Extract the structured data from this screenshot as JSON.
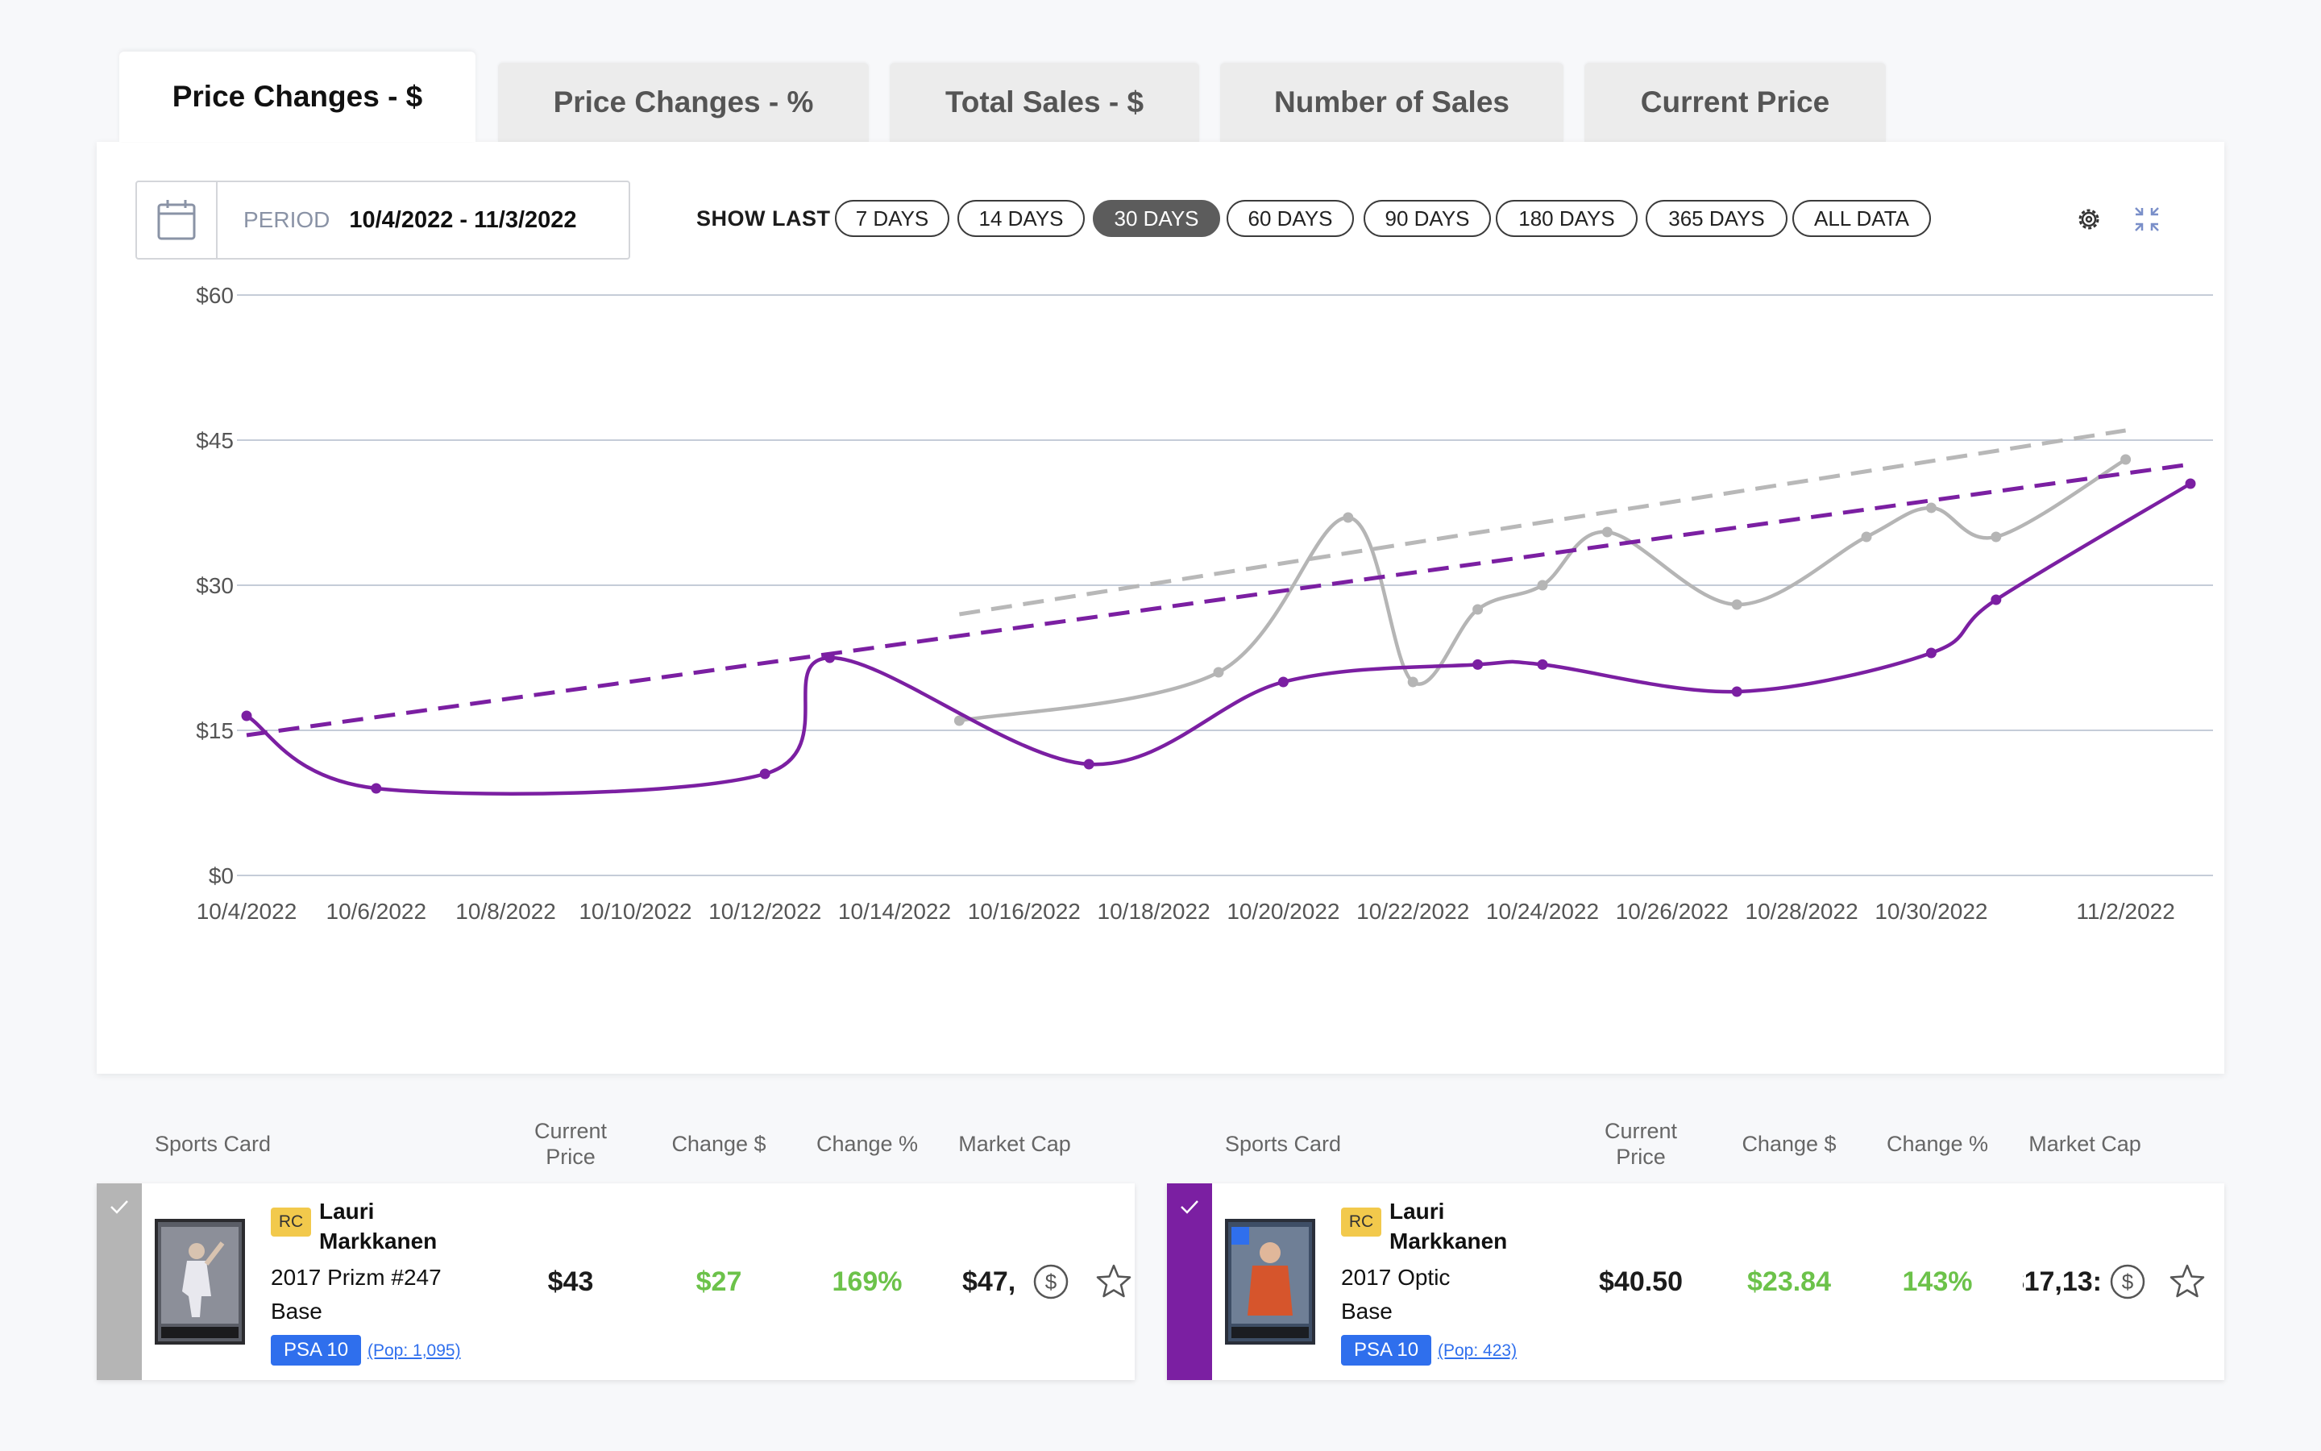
{
  "tabs": [
    {
      "label": "Price Changes - $",
      "active": true
    },
    {
      "label": "Price Changes - %",
      "active": false
    },
    {
      "label": "Total Sales - $",
      "active": false
    },
    {
      "label": "Number of Sales",
      "active": false
    },
    {
      "label": "Current Price",
      "active": false
    }
  ],
  "period": {
    "label": "PERIOD",
    "value": "10/4/2022 - 11/3/2022"
  },
  "show_last": {
    "label": "SHOW LAST",
    "options": [
      "7 DAYS",
      "14 DAYS",
      "30 DAYS",
      "60 DAYS",
      "90 DAYS",
      "180 DAYS",
      "365 DAYS",
      "ALL DATA"
    ],
    "selected": "30 DAYS"
  },
  "icons": {
    "calendar": "calendar-icon",
    "settings": "gear-icon",
    "collapse": "collapse-icon"
  },
  "chart_data": {
    "type": "line",
    "y_ticks": [
      "$60",
      "$45",
      "$30",
      "$15",
      "$0"
    ],
    "x_ticks": [
      "10/4/2022",
      "10/6/2022",
      "10/8/2022",
      "10/10/2022",
      "10/12/2022",
      "10/14/2022",
      "10/16/2022",
      "10/18/2022",
      "10/20/2022",
      "10/22/2022",
      "10/24/2022",
      "10/26/2022",
      "10/28/2022",
      "10/30/2022",
      "11/2/2022"
    ],
    "ylim": [
      0,
      60
    ],
    "xlim": [
      "10/4/2022",
      "11/3/2022"
    ],
    "grid": true,
    "series": [
      {
        "color": "#7b1fa2",
        "points": [
          {
            "x": "10/4/2022",
            "y": 16.5
          },
          {
            "x": "10/6/2022",
            "y": 9
          },
          {
            "x": "10/12/2022",
            "y": 10.5
          },
          {
            "x": "10/13/2022",
            "y": 22.5
          },
          {
            "x": "10/17/2022",
            "y": 11.5
          },
          {
            "x": "10/20/2022",
            "y": 20
          },
          {
            "x": "10/23/2022",
            "y": 21.8
          },
          {
            "x": "10/24/2022",
            "y": 21.8
          },
          {
            "x": "10/27/2022",
            "y": 19
          },
          {
            "x": "10/30/2022",
            "y": 23
          },
          {
            "x": "10/31/2022",
            "y": 28.5
          },
          {
            "x": "11/3/2022",
            "y": 40.5
          }
        ],
        "trend": [
          {
            "x": "10/4/2022",
            "y": 14.5
          },
          {
            "x": "11/3/2022",
            "y": 42.5
          }
        ]
      },
      {
        "color": "#b5b5b5",
        "points": [
          {
            "x": "10/15/2022",
            "y": 16
          },
          {
            "x": "10/19/2022",
            "y": 21
          },
          {
            "x": "10/21/2022",
            "y": 37
          },
          {
            "x": "10/22/2022",
            "y": 20
          },
          {
            "x": "10/23/2022",
            "y": 27.5
          },
          {
            "x": "10/24/2022",
            "y": 30
          },
          {
            "x": "10/25/2022",
            "y": 35.5
          },
          {
            "x": "10/27/2022",
            "y": 28
          },
          {
            "x": "10/29/2022",
            "y": 35
          },
          {
            "x": "10/30/2022",
            "y": 38
          },
          {
            "x": "10/31/2022",
            "y": 35
          },
          {
            "x": "11/2/2022",
            "y": 43
          }
        ],
        "trend": [
          {
            "x": "10/15/2022",
            "y": 27
          },
          {
            "x": "11/2/2022",
            "y": 46
          }
        ]
      }
    ]
  },
  "tables": [
    {
      "headers": {
        "card": "Sports Card",
        "price": "Current\nPrice",
        "change_usd": "Change $",
        "change_pct": "Change %",
        "market_cap": "Market Cap"
      },
      "row": {
        "checked": true,
        "bar_color": "#b5b5b5",
        "badge": "RC",
        "player": "Lauri\nMarkkanen",
        "set": "2017 Prizm #247\nBase",
        "grade": "PSA 10",
        "pop": "(Pop: 1,095)",
        "price": "$43",
        "change_usd": "$27",
        "change_pct": "169%",
        "market_cap": "$47,"
      }
    },
    {
      "headers": {
        "card": "Sports Card",
        "price": "Current\nPrice",
        "change_usd": "Change $",
        "change_pct": "Change %",
        "market_cap": "Market Cap"
      },
      "row": {
        "checked": true,
        "bar_color": "#7b1fa2",
        "badge": "RC",
        "player": "Lauri\nMarkkanen",
        "set": "2017 Optic\nBase",
        "grade": "PSA 10",
        "pop": "(Pop: 423)",
        "price": "$40.50",
        "change_usd": "$23.84",
        "change_pct": "143%",
        "market_cap": "$17,13:"
      }
    }
  ]
}
